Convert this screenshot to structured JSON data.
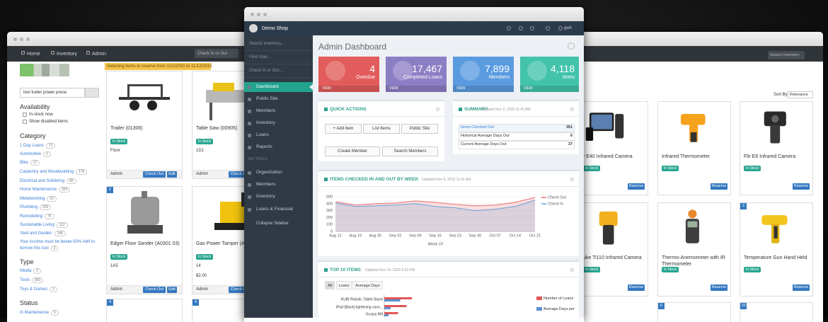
{
  "left": {
    "nav": [
      "Home",
      "Inventory",
      "Admin"
    ],
    "checkin": "Check In or Out",
    "banner": "Selecting items to reserve from 11/1/2015 to 11/12/2015",
    "search": "tool trailer power prese",
    "availability": {
      "title": "Availability",
      "options": [
        "In-stock now",
        "Show disabled items"
      ]
    },
    "category": {
      "title": "Category",
      "items": [
        {
          "label": "1 Day Loans",
          "count": 71
        },
        {
          "label": "Automotive",
          "count": 1
        },
        {
          "label": "Bike",
          "count": 17
        },
        {
          "label": "Carpentry and Woodworking",
          "count": 176
        },
        {
          "label": "Electrical and Soldering",
          "count": 86
        },
        {
          "label": "Home Maintenance",
          "count": 324
        },
        {
          "label": "Metalworking",
          "count": 62
        },
        {
          "label": "Plumbing",
          "count": 202
        },
        {
          "label": "Remodeling",
          "count": 75
        },
        {
          "label": "Sustainable Living",
          "count": 112
        },
        {
          "label": "Yard and Garden",
          "count": 146
        },
        {
          "label": "Your income must be below 50% AMI to borrow this tool",
          "count": 2
        }
      ]
    },
    "type": {
      "title": "Type",
      "items": [
        {
          "label": "Media",
          "count": 2
        },
        {
          "label": "Tools",
          "count": 883
        },
        {
          "label": "Toys & Games",
          "count": 1
        }
      ]
    },
    "status": {
      "title": "Status",
      "items": [
        {
          "label": "In Maintenance",
          "count": 5
        }
      ]
    },
    "cards": [
      {
        "name": "Trailer (01308)",
        "status": "In Stock",
        "location": "Floor",
        "user": "Admin",
        "actions": [
          "Check Out",
          "Edit"
        ]
      },
      {
        "name": "Table Saw (00905)",
        "status": "In Stock",
        "location": "1D1",
        "user": "Admin",
        "actions": [
          "Check Out"
        ]
      },
      {
        "badge": 2,
        "name": "Edger Floor Sander (A0301 03)",
        "status": "In Stock",
        "location": "1A5",
        "user": "Admin",
        "actions": [
          "Check Out",
          "Edit"
        ]
      },
      {
        "name": "Gas Power Tamper (A0301 05)",
        "status": "In Stock",
        "location": "14",
        "price": "$2.00",
        "user": "Admin",
        "actions": [
          "Check Out"
        ]
      }
    ],
    "next_row_badges": [
      4,
      4
    ]
  },
  "center": {
    "shop": "Demo Shop",
    "user": "gwh",
    "sidebar": {
      "inputs": [
        "Search inventory...",
        "Find User...",
        "Check In or Out..."
      ],
      "menu": [
        "Dashboard",
        "Public Site",
        "Members",
        "Inventory",
        "Loans",
        "Reports"
      ],
      "settings_heading": "SETTINGS",
      "settings": [
        "Organization",
        "Members",
        "Inventory",
        "Loans & Financial"
      ],
      "collapse": "Collapse Sidebar"
    },
    "title": "Admin Dashboard",
    "stats": [
      {
        "value": "4",
        "label": "Overdue",
        "link": "VIEW",
        "color": "#e25c5c"
      },
      {
        "value": "17,467",
        "label": "Completed Loans",
        "link": "VIEW",
        "color": "#8c7ec4"
      },
      {
        "value": "7,899",
        "label": "Members",
        "link": "VIEW",
        "color": "#5a9be0"
      },
      {
        "value": "4,118",
        "label": "Items",
        "link": "VIEW",
        "color": "#43c3ac"
      }
    ],
    "quick_actions": {
      "title": "QUICK ACTIONS",
      "buttons": [
        "+ Add Item",
        "List Items",
        "Public Site",
        "Create Member",
        "Search Members"
      ]
    },
    "summary": {
      "title": "SUMMARY",
      "updated": "Updated Nov 6, 2015 11:41 AM",
      "rows": [
        {
          "label": "Items Checked Out",
          "value": 351
        },
        {
          "label": "Historical Average Days Out",
          "value": 6
        },
        {
          "label": "Current Average Days Out",
          "value": 37
        }
      ]
    },
    "checkins": {
      "type": "line",
      "title": "ITEMS CHECKED IN AND OUT BY WEEK",
      "updated": "Updated Nov 6, 2015 11:41 AM",
      "categories": [
        "Aug 12",
        "Aug 19",
        "Aug 26",
        "Sep 02",
        "Sep 09",
        "Sep 16",
        "Sep 23",
        "Sep 30",
        "Oct 07",
        "Oct 14",
        "Oct 21"
      ],
      "xlabel": "Week Of",
      "ylim": [
        0,
        500
      ],
      "yticks": [
        0,
        100,
        200,
        300,
        400,
        500
      ],
      "grid": true,
      "series": [
        {
          "name": "Check Out",
          "color": "#e46f6f",
          "values": [
            430,
            380,
            400,
            410,
            440,
            420,
            390,
            370,
            380,
            420,
            490
          ]
        },
        {
          "name": "Check In",
          "color": "#6f9fd8",
          "values": [
            410,
            360,
            370,
            380,
            400,
            360,
            340,
            300,
            320,
            360,
            450
          ]
        }
      ]
    },
    "top10": {
      "type": "bar",
      "title": "TOP 10 ITEMS",
      "updated": "Updated Nov 14, 2015 6:22 PM",
      "tabs": [
        "All",
        "Loans",
        "Average Days"
      ],
      "categories": [
        "KUBI Robotic Tablet Stand",
        "iPad (Black) lightening conn...",
        "Oculus Rift"
      ],
      "series": [
        {
          "name": "Number of Loans",
          "color": "#e05656",
          "values": [
            26,
            21,
            13
          ]
        },
        {
          "name": "Average Days per",
          "color": "#5b8fd0",
          "values": [
            15,
            6,
            4
          ]
        }
      ]
    }
  },
  "right": {
    "search": "Search Inventory",
    "sort_label": "Sort By",
    "sort_value": "Relevance",
    "cards": [
      {
        "name": "r E40 Infrared Camera",
        "status": "In Stock",
        "action": "Reserve"
      },
      {
        "name": "Infrared Thermometer",
        "status": "In Stock",
        "action": "Reserve"
      },
      {
        "name": "Flir E6 Infrared Camera",
        "status": "In Stock",
        "action": "Reserve"
      },
      {
        "name": "uke Ti110 Infrared Camera",
        "status": "In Stock",
        "action": "Reserve"
      },
      {
        "name": "Thermo-Anemometer with IR Thermometer",
        "status": "In Stock",
        "action": "Reserve"
      },
      {
        "badge": 2,
        "name": "Temperature Gun Hand Held",
        "status": "In Stock",
        "action": "Reserve"
      }
    ],
    "next_row_badges": [
      6,
      10
    ]
  }
}
